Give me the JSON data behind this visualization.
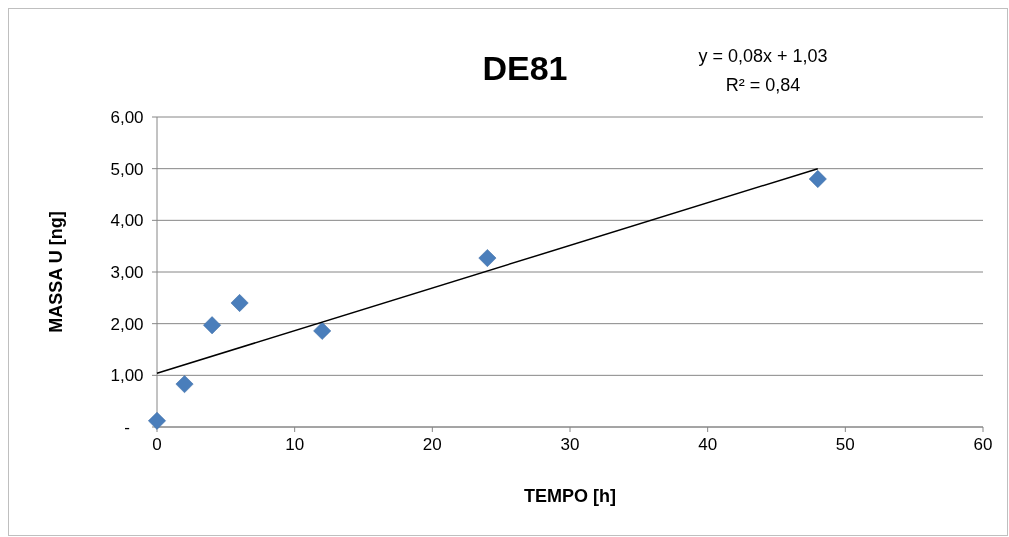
{
  "chart_data": {
    "type": "scatter",
    "title": "DE81",
    "xlabel": "TEMPO [h]",
    "ylabel": "MASSA U [ng]",
    "annotations": [
      "y = 0,08x + 1,03",
      "R² = 0,84"
    ],
    "xlim": [
      0,
      60
    ],
    "xticks": [
      0,
      10,
      20,
      30,
      40,
      50,
      60
    ],
    "ylim": [
      0,
      6
    ],
    "yticks": [
      {
        "value": 0,
        "label": "-"
      },
      {
        "value": 1,
        "label": "1,00"
      },
      {
        "value": 2,
        "label": "2,00"
      },
      {
        "value": 3,
        "label": "3,00"
      },
      {
        "value": 4,
        "label": "4,00"
      },
      {
        "value": 5,
        "label": "5,00"
      },
      {
        "value": 6,
        "label": "6,00"
      }
    ],
    "grid": "y",
    "marker": "diamond",
    "series": [
      {
        "color": "#4a7ebb",
        "x": [
          0,
          2,
          4,
          6,
          12,
          24,
          48
        ],
        "values": [
          0.12,
          0.83,
          1.97,
          2.4,
          1.86,
          3.27,
          4.8
        ]
      },
      {
        "type": "line",
        "color": "#000000",
        "x": [
          0,
          48
        ],
        "values": [
          1.04,
          5.0
        ],
        "marker": "none",
        "line_style": "solid"
      }
    ]
  }
}
